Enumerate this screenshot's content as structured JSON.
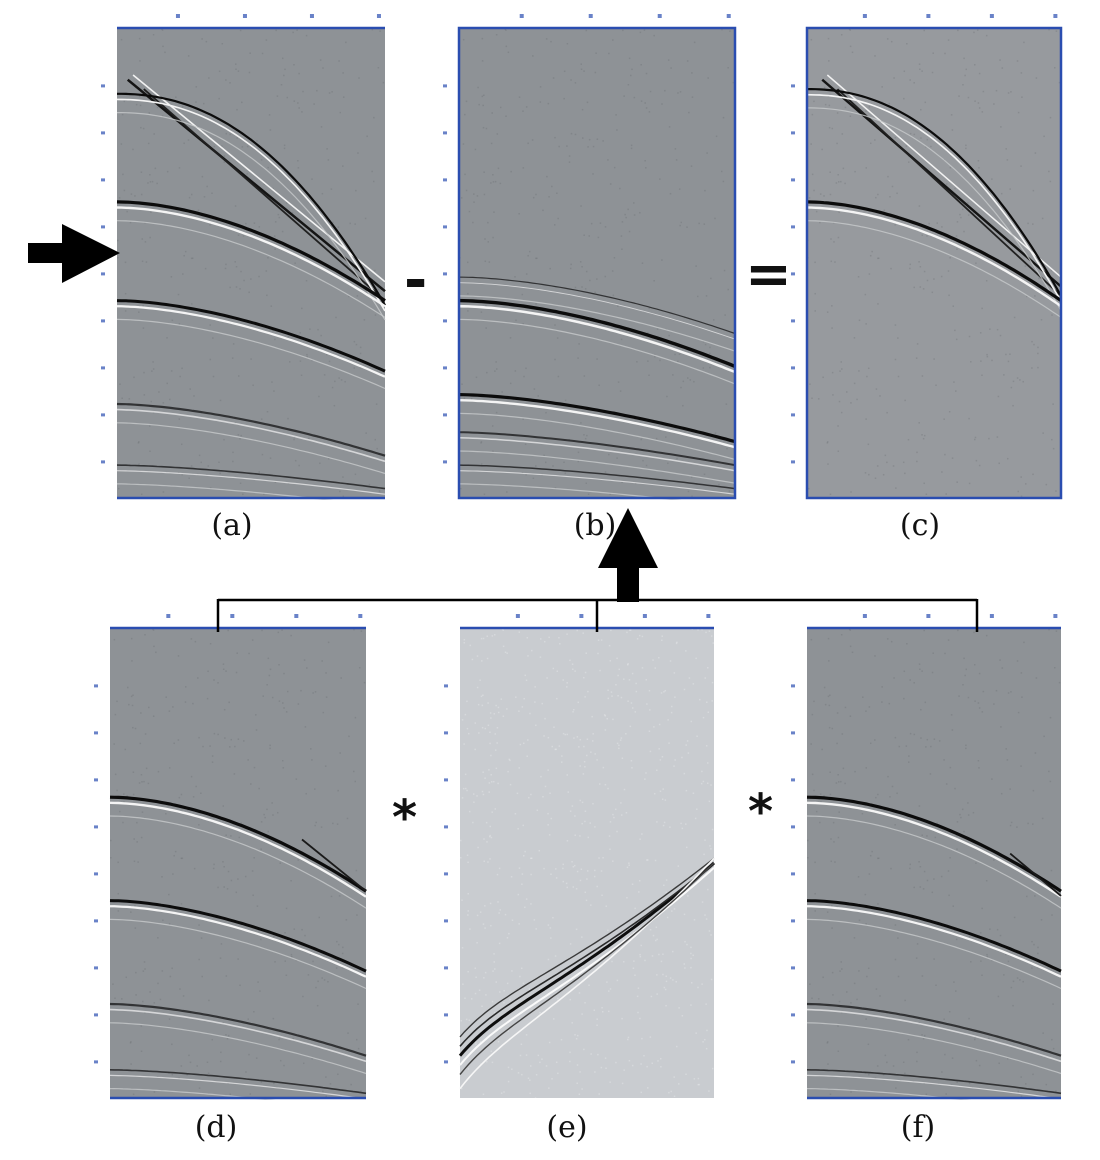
{
  "figure": {
    "panels": [
      {
        "id": "a",
        "label": "(a)",
        "depicts": "seismic shot gather"
      },
      {
        "id": "b",
        "label": "(b)",
        "depicts": "seismic gather"
      },
      {
        "id": "c",
        "label": "(c)",
        "depicts": "seismic gather"
      },
      {
        "id": "d",
        "label": "(d)",
        "depicts": "seismic gather"
      },
      {
        "id": "e",
        "label": "(e)",
        "depicts": "seismic gather"
      },
      {
        "id": "f",
        "label": "(f)",
        "depicts": "seismic gather"
      }
    ],
    "operators": {
      "minus": "-",
      "equals": "=",
      "convolve_left": "*",
      "convolve_right": "*"
    },
    "colors": {
      "frame_axis": "#2a4db0",
      "panel_gray": "#8e9296",
      "panel_e_gray": "#c9ccd0",
      "arrow": "#000000",
      "connector": "#000000"
    }
  }
}
